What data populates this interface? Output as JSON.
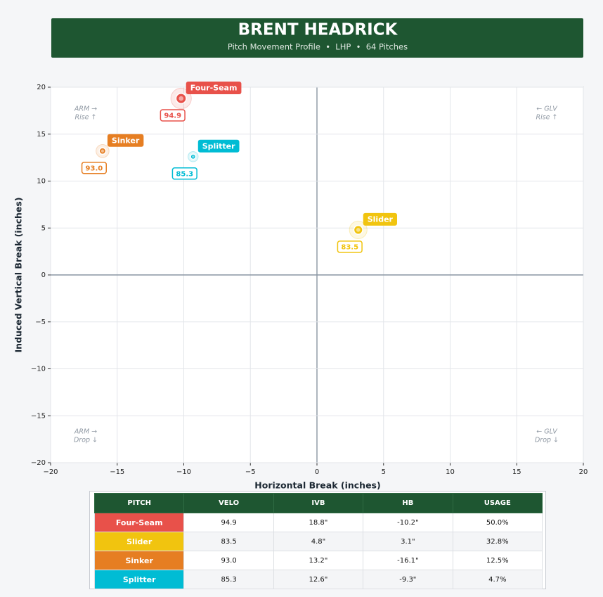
{
  "header": {
    "title": "BRENT HEADRICK",
    "subtitle": "Pitch Movement Profile  •  LHP  •  64 Pitches"
  },
  "chart_data": {
    "type": "scatter",
    "xlabel": "Horizontal Break (inches)",
    "ylabel": "Induced Vertical Break (inches)",
    "xlim": [
      -20,
      20
    ],
    "ylim": [
      -20,
      20
    ],
    "xticks": [
      {
        "value": -20,
        "label": "−20"
      },
      {
        "value": -15,
        "label": "−15"
      },
      {
        "value": -10,
        "label": "−10"
      },
      {
        "value": -5,
        "label": "−5"
      },
      0,
      5,
      10,
      15,
      20
    ],
    "yticks": [
      {
        "value": -20,
        "label": "−20"
      },
      {
        "value": -15,
        "label": "−15"
      },
      {
        "value": -10,
        "label": "−10"
      },
      {
        "value": -5,
        "label": "−5"
      },
      0,
      5,
      10,
      15,
      20
    ],
    "grid": true,
    "annotations": [
      [
        "ARM →",
        "Rise ↑"
      ],
      [
        "← GLV",
        "Rise ↑"
      ],
      [
        "ARM →",
        "Drop ↓"
      ],
      [
        "← GLV",
        "Drop ↓"
      ]
    ],
    "series": [
      {
        "name": "Four-Seam",
        "color": "#e8514a",
        "x": [
          -10.2
        ],
        "y": [
          18.8
        ],
        "size": [
          50.0
        ]
      },
      {
        "name": "Slider",
        "color": "#f1c40f",
        "x": [
          3.1
        ],
        "y": [
          4.8
        ],
        "size": [
          32.8
        ]
      },
      {
        "name": "Sinker",
        "color": "#e67e22",
        "x": [
          -16.1
        ],
        "y": [
          13.2
        ],
        "size": [
          12.5
        ]
      },
      {
        "name": "Splitter",
        "color": "#00bcd4",
        "x": [
          -9.3
        ],
        "y": [
          12.6
        ],
        "size": [
          4.7
        ]
      }
    ]
  },
  "table": {
    "columns": [
      "PITCH",
      "VELO",
      "IVB",
      "HB",
      "USAGE"
    ],
    "rows": [
      [
        "Four-Seam",
        "94.9",
        "18.8\"",
        "-10.2\"",
        "50.0%"
      ],
      [
        "Slider",
        "83.5",
        "4.8\"",
        "3.1\"",
        "32.8%"
      ],
      [
        "Sinker",
        "93.0",
        "13.2\"",
        "-16.1\"",
        "12.5%"
      ],
      [
        "Splitter",
        "85.3",
        "12.6\"",
        "-9.3\"",
        "4.7%"
      ]
    ]
  }
}
